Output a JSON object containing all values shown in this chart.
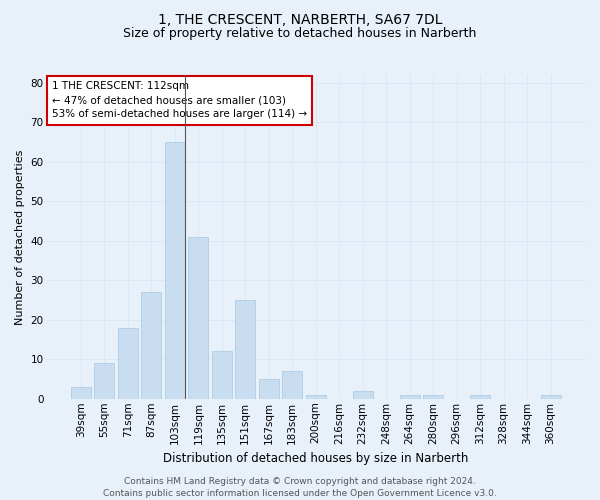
{
  "title": "1, THE CRESCENT, NARBERTH, SA67 7DL",
  "subtitle": "Size of property relative to detached houses in Narberth",
  "xlabel": "Distribution of detached houses by size in Narberth",
  "ylabel": "Number of detached properties",
  "categories": [
    "39sqm",
    "55sqm",
    "71sqm",
    "87sqm",
    "103sqm",
    "119sqm",
    "135sqm",
    "151sqm",
    "167sqm",
    "183sqm",
    "200sqm",
    "216sqm",
    "232sqm",
    "248sqm",
    "264sqm",
    "280sqm",
    "296sqm",
    "312sqm",
    "328sqm",
    "344sqm",
    "360sqm"
  ],
  "values": [
    3,
    9,
    18,
    27,
    65,
    41,
    12,
    25,
    5,
    7,
    1,
    0,
    2,
    0,
    1,
    1,
    0,
    1,
    0,
    0,
    1
  ],
  "bar_color": "#c8ddf0",
  "bar_edge_color": "#b0cce4",
  "grid_color": "#d8e8f5",
  "background_color": "#e8f0fa",
  "annotation_text": "1 THE CRESCENT: 112sqm\n← 47% of detached houses are smaller (103)\n53% of semi-detached houses are larger (114) →",
  "annotation_box_color": "#ffffff",
  "annotation_box_edge_color": "#cc0000",
  "ylim": [
    0,
    82
  ],
  "yticks": [
    0,
    10,
    20,
    30,
    40,
    50,
    60,
    70,
    80
  ],
  "vline_x": 4.42,
  "footer_text": "Contains HM Land Registry data © Crown copyright and database right 2024.\nContains public sector information licensed under the Open Government Licence v3.0.",
  "title_fontsize": 10,
  "subtitle_fontsize": 9,
  "xlabel_fontsize": 8.5,
  "ylabel_fontsize": 8,
  "tick_fontsize": 7.5,
  "annotation_fontsize": 7.5,
  "footer_fontsize": 6.5
}
